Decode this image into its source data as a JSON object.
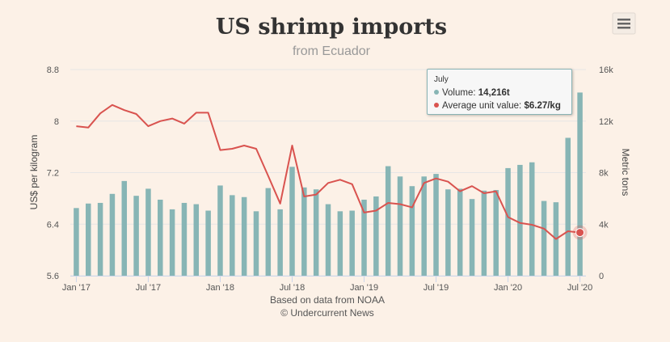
{
  "chart_data": {
    "type": "bar+line",
    "title": "US shrimp imports",
    "subtitle": "from Ecuador",
    "ylabel_left": "US$ per kilogram",
    "ylabel_right": "Metric tons",
    "xlabel": "Based on data from NOAA",
    "credit": "© Undercurrent News",
    "ylim_left": [
      5.6,
      8.8
    ],
    "ylim_right": [
      0,
      16000
    ],
    "yticks_left": [
      "5.6",
      "6.4",
      "7.2",
      "8",
      "8.8"
    ],
    "yticks_right": [
      "0",
      "4k",
      "8k",
      "12k",
      "16k"
    ],
    "x_tick_labels": [
      "Jan '17",
      "Jul '17",
      "Jan '18",
      "Jul '18",
      "Jan '19",
      "Jul '19",
      "Jan '20",
      "Jul '20"
    ],
    "x_tick_index": [
      0,
      6,
      12,
      18,
      24,
      30,
      36,
      42
    ],
    "categories": [
      "Jan 2017",
      "Feb 2017",
      "Mar 2017",
      "Apr 2017",
      "May 2017",
      "Jun 2017",
      "Jul 2017",
      "Aug 2017",
      "Sep 2017",
      "Oct 2017",
      "Nov 2017",
      "Dec 2017",
      "Jan 2018",
      "Feb 2018",
      "Mar 2018",
      "Apr 2018",
      "May 2018",
      "Jun 2018",
      "Jul 2018",
      "Aug 2018",
      "Sep 2018",
      "Oct 2018",
      "Nov 2018",
      "Dec 2018",
      "Jan 2019",
      "Feb 2019",
      "Mar 2019",
      "Apr 2019",
      "May 2019",
      "Jun 2019",
      "Jul 2019",
      "Aug 2019",
      "Sep 2019",
      "Oct 2019",
      "Nov 2019",
      "Dec 2019",
      "Jan 2020",
      "Feb 2020",
      "Mar 2020",
      "Apr 2020",
      "May 2020",
      "Jun 2020",
      "Jul 2020"
    ],
    "series": [
      {
        "name": "Volume",
        "axis": "right",
        "type": "bar",
        "color": "#87b5b5",
        "values": [
          5250,
          5600,
          5650,
          6350,
          7350,
          6200,
          6750,
          5900,
          5150,
          5650,
          5550,
          5050,
          7000,
          6250,
          6100,
          5000,
          6800,
          5150,
          8450,
          6850,
          6700,
          5550,
          5000,
          5050,
          5900,
          6150,
          8500,
          7700,
          6950,
          7700,
          7900,
          6700,
          6750,
          5950,
          6600,
          6650,
          8350,
          8600,
          8800,
          5800,
          5700,
          10700,
          14216
        ]
      },
      {
        "name": "Average unit value",
        "axis": "left",
        "type": "line",
        "color": "#d9534f",
        "values": [
          7.92,
          7.9,
          8.12,
          8.25,
          8.17,
          8.11,
          7.92,
          8.0,
          8.04,
          7.96,
          8.13,
          8.13,
          7.55,
          7.57,
          7.62,
          7.57,
          7.15,
          6.72,
          7.62,
          6.83,
          6.86,
          7.04,
          7.09,
          7.02,
          6.58,
          6.61,
          6.73,
          6.71,
          6.66,
          7.04,
          7.11,
          7.06,
          6.91,
          6.99,
          6.88,
          6.91,
          6.51,
          6.42,
          6.39,
          6.33,
          6.17,
          6.29,
          6.27
        ]
      }
    ],
    "tooltip": {
      "header": "July",
      "volume_label": "Volume: ",
      "volume_value": "14,216t",
      "value_label": "Average unit value: ",
      "value_value": "$6.27/kg"
    }
  },
  "menu": {
    "icon": "hamburger-menu-icon"
  }
}
